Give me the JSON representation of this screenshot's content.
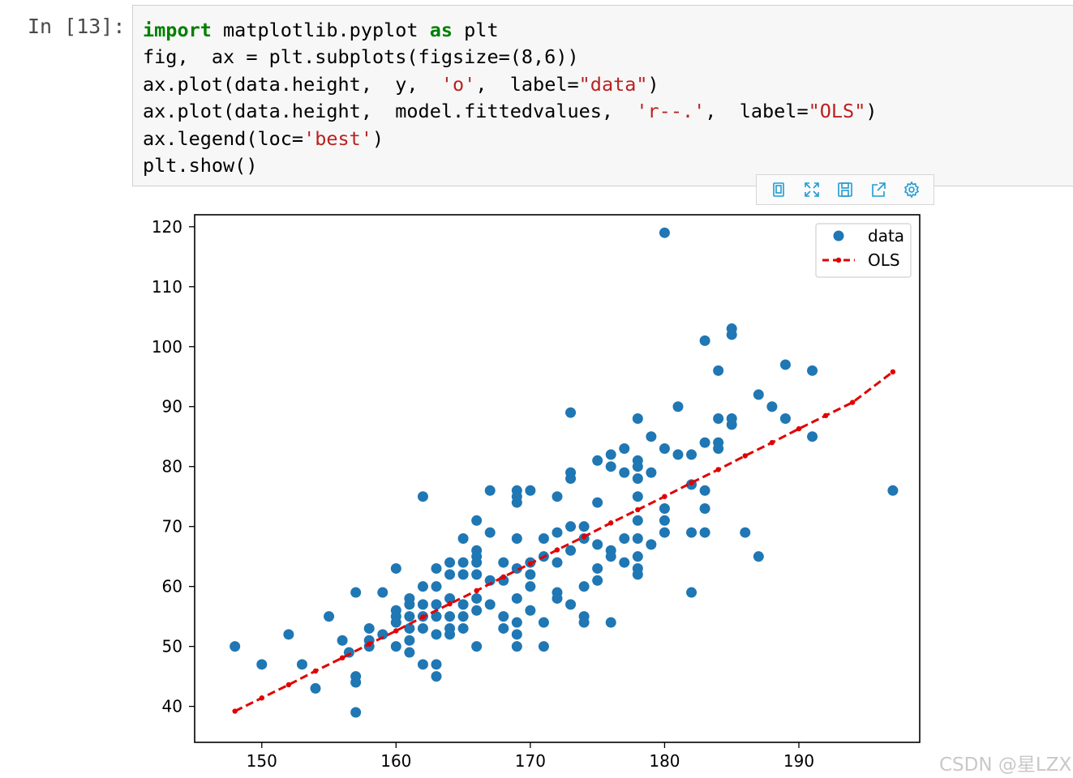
{
  "cell": {
    "prompt": "In [13]:",
    "code_lines": [
      [
        {
          "t": "import",
          "c": "kw"
        },
        {
          "t": " matplotlib.pyplot ",
          "c": ""
        },
        {
          "t": "as",
          "c": "kw"
        },
        {
          "t": " plt",
          "c": ""
        }
      ],
      [
        {
          "t": "fig,  ax = plt.subplots(figsize=(8,6))",
          "c": ""
        }
      ],
      [
        {
          "t": "ax.plot(data.height,  y,  ",
          "c": ""
        },
        {
          "t": "'o'",
          "c": "str"
        },
        {
          "t": ",  label=",
          "c": ""
        },
        {
          "t": "\"data\"",
          "c": "str"
        },
        {
          "t": ")",
          "c": ""
        }
      ],
      [
        {
          "t": "ax.plot(data.height,  model.fittedvalues,  ",
          "c": ""
        },
        {
          "t": "'r--.'",
          "c": "str"
        },
        {
          "t": ",  label=",
          "c": ""
        },
        {
          "t": "\"OLS\"",
          "c": "str"
        },
        {
          "t": ")",
          "c": ""
        }
      ],
      [
        {
          "t": "ax.legend(loc=",
          "c": ""
        },
        {
          "t": "'best'",
          "c": "str"
        },
        {
          "t": ")",
          "c": ""
        }
      ],
      [
        {
          "t": "plt.show()",
          "c": ""
        }
      ]
    ]
  },
  "toolbar": {
    "icons": [
      "bookmark-icon",
      "expand-icon",
      "save-icon",
      "share-icon",
      "gear-icon"
    ],
    "accent": "#1f9bd1"
  },
  "chart_data": {
    "type": "scatter",
    "xlim": [
      145,
      199
    ],
    "ylim": [
      34,
      122
    ],
    "xticks": [
      150,
      160,
      170,
      180,
      190
    ],
    "yticks": [
      40,
      50,
      60,
      70,
      80,
      90,
      100,
      110,
      120
    ],
    "legend": "top-right",
    "grid": false,
    "series": [
      {
        "name": "data",
        "style": "marker",
        "color": "#1f77b4",
        "points": [
          [
            148,
            50
          ],
          [
            150,
            47
          ],
          [
            152,
            52
          ],
          [
            153,
            47
          ],
          [
            154,
            43
          ],
          [
            155,
            55
          ],
          [
            156,
            51
          ],
          [
            156.5,
            49
          ],
          [
            157,
            59
          ],
          [
            157,
            45
          ],
          [
            157,
            44
          ],
          [
            157,
            39
          ],
          [
            158,
            53
          ],
          [
            158,
            51
          ],
          [
            158,
            50
          ],
          [
            159,
            59
          ],
          [
            159,
            52
          ],
          [
            160,
            63
          ],
          [
            160,
            56
          ],
          [
            160,
            55
          ],
          [
            160,
            54
          ],
          [
            160,
            50
          ],
          [
            161,
            58
          ],
          [
            161,
            57
          ],
          [
            161,
            55
          ],
          [
            161,
            53
          ],
          [
            161,
            51
          ],
          [
            161,
            49
          ],
          [
            162,
            75
          ],
          [
            162,
            60
          ],
          [
            162,
            57
          ],
          [
            162,
            55
          ],
          [
            162,
            53
          ],
          [
            162,
            47
          ],
          [
            163,
            63
          ],
          [
            163,
            60
          ],
          [
            163,
            57
          ],
          [
            163,
            55
          ],
          [
            163,
            52
          ],
          [
            163,
            47
          ],
          [
            163,
            45
          ],
          [
            164,
            64
          ],
          [
            164,
            62
          ],
          [
            164,
            58
          ],
          [
            164,
            55
          ],
          [
            164,
            53
          ],
          [
            164,
            52
          ],
          [
            165,
            68
          ],
          [
            165,
            64
          ],
          [
            165,
            62
          ],
          [
            165,
            57
          ],
          [
            165,
            55
          ],
          [
            165,
            53
          ],
          [
            166,
            71
          ],
          [
            166,
            66
          ],
          [
            166,
            65
          ],
          [
            166,
            64
          ],
          [
            166,
            62
          ],
          [
            166,
            58
          ],
          [
            166,
            56
          ],
          [
            166,
            50
          ],
          [
            167,
            76
          ],
          [
            167,
            69
          ],
          [
            167,
            61
          ],
          [
            167,
            57
          ],
          [
            168,
            64
          ],
          [
            168,
            61
          ],
          [
            168,
            55
          ],
          [
            168,
            53
          ],
          [
            169,
            76
          ],
          [
            169,
            75
          ],
          [
            169,
            74
          ],
          [
            169,
            68
          ],
          [
            169,
            63
          ],
          [
            169,
            58
          ],
          [
            169,
            54
          ],
          [
            169,
            52
          ],
          [
            169,
            50
          ],
          [
            170,
            76
          ],
          [
            170,
            64
          ],
          [
            170,
            62
          ],
          [
            170,
            60
          ],
          [
            170,
            56
          ],
          [
            171,
            68
          ],
          [
            171,
            65
          ],
          [
            171,
            54
          ],
          [
            171,
            50
          ],
          [
            172,
            75
          ],
          [
            172,
            69
          ],
          [
            172,
            64
          ],
          [
            172,
            59
          ],
          [
            172,
            58
          ],
          [
            173,
            89
          ],
          [
            173,
            79
          ],
          [
            173,
            78
          ],
          [
            173,
            70
          ],
          [
            173,
            66
          ],
          [
            173,
            57
          ],
          [
            174,
            70
          ],
          [
            174,
            68
          ],
          [
            174,
            60
          ],
          [
            174,
            55
          ],
          [
            174,
            54
          ],
          [
            175,
            74
          ],
          [
            175,
            67
          ],
          [
            175,
            63
          ],
          [
            175,
            61
          ],
          [
            175,
            81
          ],
          [
            176,
            82
          ],
          [
            176,
            80
          ],
          [
            176,
            66
          ],
          [
            176,
            65
          ],
          [
            176,
            54
          ],
          [
            177,
            83
          ],
          [
            177,
            79
          ],
          [
            177,
            68
          ],
          [
            177,
            64
          ],
          [
            178,
            88
          ],
          [
            178,
            81
          ],
          [
            178,
            80
          ],
          [
            178,
            78
          ],
          [
            178,
            75
          ],
          [
            178,
            71
          ],
          [
            178,
            68
          ],
          [
            178,
            65
          ],
          [
            178,
            63
          ],
          [
            178,
            62
          ],
          [
            179,
            85
          ],
          [
            179,
            79
          ],
          [
            179,
            67
          ],
          [
            180,
            119
          ],
          [
            180,
            83
          ],
          [
            180,
            73
          ],
          [
            180,
            71
          ],
          [
            180,
            69
          ],
          [
            181,
            90
          ],
          [
            181,
            82
          ],
          [
            182,
            82
          ],
          [
            182,
            77
          ],
          [
            182,
            69
          ],
          [
            182,
            59
          ],
          [
            183,
            101
          ],
          [
            183,
            84
          ],
          [
            183,
            76
          ],
          [
            183,
            73
          ],
          [
            183,
            69
          ],
          [
            184,
            96
          ],
          [
            184,
            88
          ],
          [
            184,
            84
          ],
          [
            184,
            83
          ],
          [
            185,
            103
          ],
          [
            185,
            102
          ],
          [
            185,
            88
          ],
          [
            185,
            87
          ],
          [
            186,
            69
          ],
          [
            187,
            92
          ],
          [
            187,
            65
          ],
          [
            188,
            90
          ],
          [
            189,
            97
          ],
          [
            189,
            88
          ],
          [
            191,
            96
          ],
          [
            191,
            85
          ],
          [
            197,
            76
          ]
        ]
      },
      {
        "name": "OLS",
        "style": "dashed-line-with-dots",
        "color": "#e00000",
        "x": [
          148,
          150,
          152,
          154,
          156,
          158,
          160,
          162,
          164,
          166,
          168,
          170,
          172,
          174,
          176,
          178,
          180,
          182,
          184,
          186,
          188,
          190,
          192,
          194,
          197
        ],
        "y": [
          39.2,
          41.4,
          43.6,
          45.9,
          48.1,
          50.4,
          52.6,
          54.9,
          57.1,
          59.3,
          61.6,
          63.8,
          66.1,
          68.3,
          70.6,
          72.8,
          75.0,
          77.3,
          79.5,
          81.8,
          84.0,
          86.3,
          88.5,
          90.7,
          95.8
        ]
      }
    ]
  },
  "watermark": "CSDN @星LZX"
}
